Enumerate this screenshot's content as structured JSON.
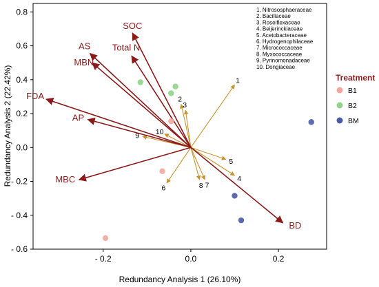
{
  "chart_data": {
    "type": "scatter",
    "xlabel": "Redundancy Analysis 1 (26.10%)",
    "ylabel": "Redundancy Analysis 2 (22.42%)",
    "xlim": [
      -0.36,
      0.31
    ],
    "ylim": [
      -0.6,
      0.85
    ],
    "x_ticks": [
      -0.2,
      0.0,
      0.2
    ],
    "x_tick_labels": [
      "- 0.2",
      "0.0",
      "0.2"
    ],
    "y_ticks": [
      0.8,
      0.6,
      0.4,
      0.2,
      0.0,
      -0.2,
      -0.4,
      -0.6
    ],
    "y_tick_labels": [
      "0.8",
      "0.6",
      "0.4",
      "0.2",
      "0.0",
      "- 0.2",
      "- 0.4",
      "- 0.6"
    ],
    "grid": false,
    "env_vectors": {
      "color": "#8b1a1a",
      "items": [
        {
          "label": "SOC",
          "x": -0.133,
          "y": 0.675
        },
        {
          "label": "Total N",
          "x": -0.135,
          "y": 0.54
        },
        {
          "label": "AS",
          "x": -0.23,
          "y": 0.555
        },
        {
          "label": "MBN",
          "x": -0.225,
          "y": 0.5
        },
        {
          "label": "FDA",
          "x": -0.33,
          "y": 0.285
        },
        {
          "label": "AP",
          "x": -0.235,
          "y": 0.165
        },
        {
          "label": "MBC",
          "x": -0.255,
          "y": -0.19
        },
        {
          "label": "BD",
          "x": 0.21,
          "y": -0.445
        }
      ]
    },
    "taxa_vectors": {
      "color": "#c8922e",
      "items": [
        {
          "label": "1",
          "x": 0.1,
          "y": 0.37
        },
        {
          "label": "2",
          "x": -0.022,
          "y": 0.255
        },
        {
          "label": "3",
          "x": -0.012,
          "y": 0.22
        },
        {
          "label": "4",
          "x": 0.1,
          "y": -0.165
        },
        {
          "label": "5",
          "x": 0.08,
          "y": -0.07
        },
        {
          "label": "6",
          "x": -0.055,
          "y": -0.21
        },
        {
          "label": "7",
          "x": 0.032,
          "y": -0.19
        },
        {
          "label": "8",
          "x": 0.02,
          "y": -0.19
        },
        {
          "label": "9",
          "x": -0.11,
          "y": 0.065
        },
        {
          "label": "10",
          "x": -0.06,
          "y": 0.08
        }
      ]
    },
    "series": [
      {
        "name": "B1",
        "color": "#f4a7a0",
        "points": [
          [
            -0.045,
            0.155
          ],
          [
            -0.065,
            -0.14
          ],
          [
            -0.195,
            -0.535
          ]
        ]
      },
      {
        "name": "B2",
        "color": "#8fd48a",
        "points": [
          [
            -0.115,
            0.385
          ],
          [
            -0.035,
            0.36
          ],
          [
            -0.045,
            0.32
          ]
        ]
      },
      {
        "name": "BM",
        "color": "#4a5ba8",
        "points": [
          [
            0.275,
            0.15
          ],
          [
            0.1,
            -0.285
          ],
          [
            0.115,
            -0.43
          ]
        ]
      }
    ],
    "taxa_legend": [
      "1. Nitrososphaeraceae",
      "2. Bacillaceae",
      "3. Roseiflexaceae",
      "4. Beijerinckiaceae",
      "5. Acetobacteraceae",
      "6. Hydrogenophilaceae",
      "7. Micrococcaceae",
      "8. Myxococcaceae",
      "9. Pyrinomonadaceae",
      "10. Dongiaceae"
    ],
    "legend": {
      "title": "Treatment",
      "position": "right"
    }
  }
}
